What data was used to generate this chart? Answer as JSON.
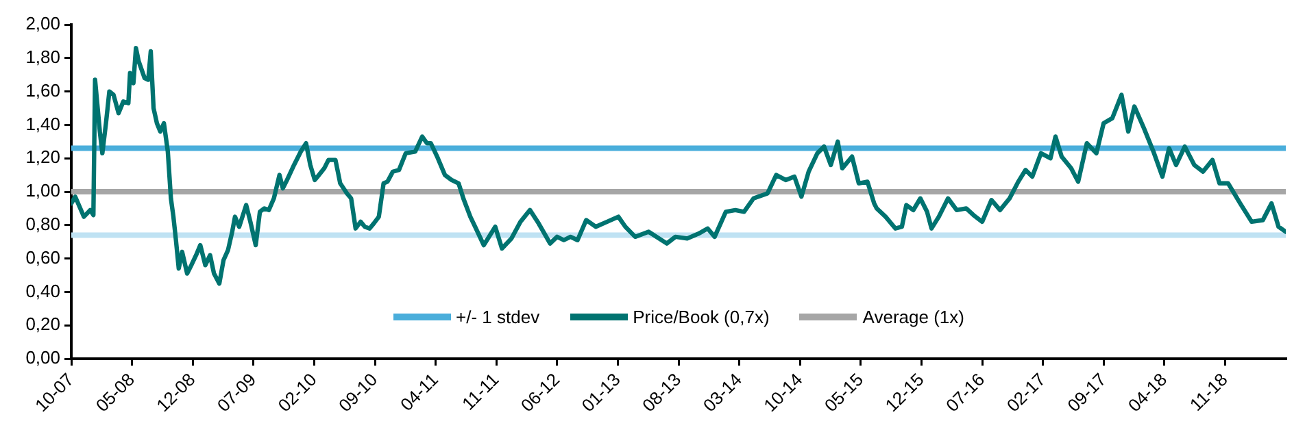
{
  "chart_data": {
    "type": "line",
    "x": [
      "2007-10-01",
      "2007-10-15",
      "2007-11-15",
      "2007-12-07",
      "2007-12-18",
      "2007-12-24",
      "2008-01-10",
      "2008-01-19",
      "2008-02-01",
      "2008-02-13",
      "2008-02-28",
      "2008-03-15",
      "2008-04-01",
      "2008-04-19",
      "2008-04-25",
      "2008-05-06",
      "2008-05-15",
      "2008-05-25",
      "2008-06-15",
      "2008-06-28",
      "2008-07-06",
      "2008-07-16",
      "2008-07-28",
      "2008-08-09",
      "2008-08-22",
      "2008-09-05",
      "2008-09-16",
      "2008-09-25",
      "2008-10-03",
      "2008-10-13",
      "2008-10-25",
      "2008-11-12",
      "2008-11-27",
      "2008-12-13",
      "2008-12-28",
      "2009-01-15",
      "2009-02-01",
      "2009-02-15",
      "2009-03-03",
      "2009-03-18",
      "2009-04-03",
      "2009-04-18",
      "2009-04-28",
      "2009-05-12",
      "2009-06-06",
      "2009-06-21",
      "2009-07-09",
      "2009-07-24",
      "2009-08-09",
      "2009-08-25",
      "2009-09-12",
      "2009-10-01",
      "2009-10-13",
      "2009-10-28",
      "2009-11-22",
      "2009-12-15",
      "2010-01-03",
      "2010-01-18",
      "2010-02-03",
      "2010-02-18",
      "2010-03-06",
      "2010-03-21",
      "2010-04-15",
      "2010-05-01",
      "2010-05-25",
      "2010-06-09",
      "2010-06-25",
      "2010-07-12",
      "2010-07-27",
      "2010-08-13",
      "2010-08-28",
      "2010-09-15",
      "2010-10-01",
      "2010-10-15",
      "2010-11-03",
      "2010-11-25",
      "2010-12-18",
      "2011-01-21",
      "2011-02-15",
      "2011-03-01",
      "2011-03-15",
      "2011-04-09",
      "2011-05-03",
      "2011-05-27",
      "2011-06-21",
      "2011-07-07",
      "2011-08-01",
      "2011-08-18",
      "2011-09-18",
      "2011-10-28",
      "2011-11-21",
      "2011-12-24",
      "2012-01-25",
      "2012-02-28",
      "2012-03-28",
      "2012-05-07",
      "2012-06-01",
      "2012-06-25",
      "2012-07-18",
      "2012-08-12",
      "2012-09-12",
      "2012-10-15",
      "2012-11-25",
      "2013-01-03",
      "2013-01-28",
      "2013-03-01",
      "2013-04-18",
      "2013-06-21",
      "2013-07-21",
      "2013-09-01",
      "2013-10-12",
      "2013-11-12",
      "2013-12-06",
      "2014-01-15",
      "2014-02-18",
      "2014-03-18",
      "2014-04-21",
      "2014-06-09",
      "2014-07-09",
      "2014-08-12",
      "2014-09-12",
      "2014-10-06",
      "2014-11-01",
      "2014-12-01",
      "2014-12-25",
      "2015-01-18",
      "2015-02-12",
      "2015-02-28",
      "2015-04-01",
      "2015-04-25",
      "2015-05-25",
      "2015-06-18",
      "2015-06-27",
      "2015-07-28",
      "2015-09-01",
      "2015-09-24",
      "2015-10-09",
      "2015-11-03",
      "2015-11-28",
      "2015-12-21",
      "2016-01-06",
      "2016-02-01",
      "2016-03-03",
      "2016-04-03",
      "2016-05-06",
      "2016-06-01",
      "2016-07-01",
      "2016-08-03",
      "2016-09-03",
      "2016-10-06",
      "2016-11-06",
      "2016-12-01",
      "2016-12-25",
      "2017-01-25",
      "2017-02-28",
      "2017-03-15",
      "2017-04-06",
      "2017-05-09",
      "2017-06-03",
      "2017-07-03",
      "2017-08-06",
      "2017-09-01",
      "2017-10-01",
      "2017-11-03",
      "2017-11-27",
      "2017-12-18",
      "2018-01-21",
      "2018-02-24",
      "2018-03-25",
      "2018-04-18",
      "2018-05-12",
      "2018-06-12",
      "2018-07-15",
      "2018-08-15",
      "2018-09-18",
      "2018-10-12",
      "2018-11-12",
      "2018-12-24",
      "2019-02-03",
      "2019-03-12",
      "2019-04-12",
      "2019-05-06",
      "2019-06-01"
    ],
    "series": [
      {
        "name": "Price/Book (0,7x)",
        "color": "#007370",
        "values": [
          0.93,
          0.97,
          0.85,
          0.89,
          0.86,
          1.67,
          1.36,
          1.23,
          1.41,
          1.6,
          1.58,
          1.47,
          1.54,
          1.53,
          1.71,
          1.65,
          1.86,
          1.78,
          1.68,
          1.67,
          1.84,
          1.5,
          1.41,
          1.36,
          1.41,
          1.24,
          0.96,
          0.85,
          0.71,
          0.54,
          0.64,
          0.51,
          0.56,
          0.62,
          0.68,
          0.56,
          0.62,
          0.51,
          0.45,
          0.59,
          0.65,
          0.76,
          0.85,
          0.79,
          0.92,
          0.82,
          0.68,
          0.88,
          0.9,
          0.89,
          0.96,
          1.1,
          1.02,
          1.07,
          1.16,
          1.24,
          1.29,
          1.16,
          1.07,
          1.1,
          1.14,
          1.19,
          1.19,
          1.05,
          0.99,
          0.96,
          0.78,
          0.82,
          0.79,
          0.78,
          0.81,
          0.85,
          1.05,
          1.06,
          1.12,
          1.13,
          1.23,
          1.24,
          1.33,
          1.29,
          1.29,
          1.2,
          1.1,
          1.07,
          1.05,
          0.96,
          0.85,
          0.79,
          0.68,
          0.79,
          0.66,
          0.72,
          0.82,
          0.89,
          0.81,
          0.69,
          0.73,
          0.71,
          0.73,
          0.71,
          0.83,
          0.79,
          0.82,
          0.85,
          0.79,
          0.73,
          0.76,
          0.69,
          0.73,
          0.72,
          0.75,
          0.78,
          0.73,
          0.88,
          0.89,
          0.88,
          0.96,
          0.99,
          1.1,
          1.07,
          1.09,
          0.97,
          1.12,
          1.23,
          1.27,
          1.16,
          1.3,
          1.14,
          1.21,
          1.05,
          1.06,
          0.93,
          0.9,
          0.85,
          0.78,
          0.79,
          0.92,
          0.89,
          0.96,
          0.88,
          0.78,
          0.85,
          0.96,
          0.89,
          0.9,
          0.86,
          0.82,
          0.95,
          0.89,
          0.96,
          1.06,
          1.13,
          1.09,
          1.23,
          1.2,
          1.33,
          1.21,
          1.14,
          1.06,
          1.29,
          1.23,
          1.41,
          1.44,
          1.58,
          1.36,
          1.51,
          1.38,
          1.24,
          1.09,
          1.26,
          1.16,
          1.27,
          1.16,
          1.12,
          1.19,
          1.05,
          1.05,
          0.93,
          0.82,
          0.83,
          0.93,
          0.79,
          0.76
        ]
      }
    ],
    "xlim": [
      "2007-10",
      "2019-06"
    ],
    "xticks": [
      {
        "value": "2007-10",
        "label": "10-07"
      },
      {
        "value": "2008-05",
        "label": "05-08"
      },
      {
        "value": "2008-12",
        "label": "12-08"
      },
      {
        "value": "2009-07",
        "label": "07-09"
      },
      {
        "value": "2010-02",
        "label": "02-10"
      },
      {
        "value": "2010-09",
        "label": "09-10"
      },
      {
        "value": "2011-04",
        "label": "04-11"
      },
      {
        "value": "2011-11",
        "label": "11-11"
      },
      {
        "value": "2012-06",
        "label": "06-12"
      },
      {
        "value": "2013-01",
        "label": "01-13"
      },
      {
        "value": "2013-08",
        "label": "08-13"
      },
      {
        "value": "2014-03",
        "label": "03-14"
      },
      {
        "value": "2014-10",
        "label": "10-14"
      },
      {
        "value": "2015-05",
        "label": "05-15"
      },
      {
        "value": "2015-12",
        "label": "12-15"
      },
      {
        "value": "2016-07",
        "label": "07-16"
      },
      {
        "value": "2017-02",
        "label": "02-17"
      },
      {
        "value": "2017-09",
        "label": "09-17"
      },
      {
        "value": "2018-04",
        "label": "04-18"
      },
      {
        "value": "2018-11",
        "label": "11-18"
      }
    ],
    "ylim": [
      0,
      2
    ],
    "yticks": [
      {
        "value": 0,
        "label": "0,00"
      },
      {
        "value": 0.2,
        "label": "0,20"
      },
      {
        "value": 0.4,
        "label": "0,40"
      },
      {
        "value": 0.6,
        "label": "0,60"
      },
      {
        "value": 0.8,
        "label": "0,80"
      },
      {
        "value": 1,
        "label": "1,00"
      },
      {
        "value": 1.2,
        "label": "1,20"
      },
      {
        "value": 1.4,
        "label": "1,40"
      },
      {
        "value": 1.6,
        "label": "1,60"
      },
      {
        "value": 1.8,
        "label": "1,80"
      },
      {
        "value": 2,
        "label": "2,00"
      }
    ],
    "ref_lines": [
      {
        "axis": "y",
        "value": 1.26,
        "label": "+/- 1 stdev",
        "color": "#4aaedb"
      },
      {
        "axis": "y",
        "value": 1.0,
        "label": "Average (1x)",
        "color": "#a6a6a6"
      },
      {
        "axis": "y",
        "value": 0.74,
        "label": null,
        "color": "#bfe2f3"
      }
    ],
    "legend": "bottom",
    "marker": "none",
    "line_style": "solid"
  }
}
